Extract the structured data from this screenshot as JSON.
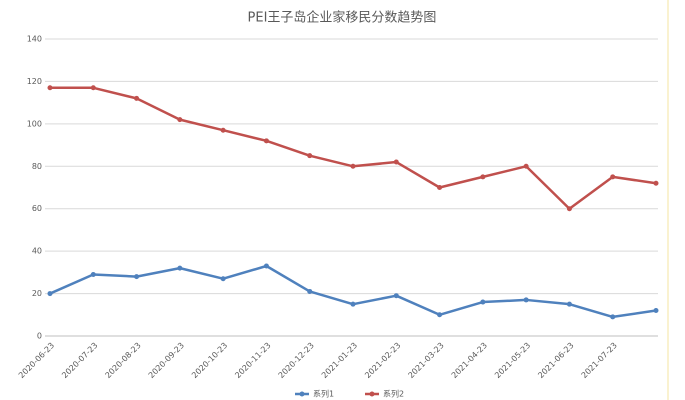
{
  "chart_data": {
    "type": "line",
    "title": "PEI王子岛企业家移民分数趋势图",
    "categories": [
      "2020-06-23",
      "2020-07-23",
      "2020-08-23",
      "2020-09-23",
      "2020-10-23",
      "2020-11-23",
      "2020-12-23",
      "2021-01-23",
      "2021-02-23",
      "2021-03-23",
      "2021-04-23",
      "2021-05-23",
      "2021-06-23",
      "2021-07-23",
      null
    ],
    "series": [
      {
        "name": "系列1",
        "color": "#4f81bd",
        "values": [
          20,
          29,
          28,
          32,
          27,
          33,
          21,
          15,
          19,
          10,
          16,
          17,
          15,
          9,
          12
        ]
      },
      {
        "name": "系列2",
        "color": "#c0504d",
        "values": [
          117,
          117,
          112,
          102,
          97,
          92,
          85,
          80,
          82,
          70,
          75,
          80,
          60,
          75,
          72
        ]
      }
    ],
    "ylim": [
      0,
      140
    ],
    "yticks": [
      0,
      20,
      40,
      60,
      80,
      100,
      120,
      140
    ],
    "grid": true,
    "legend": "bottom"
  }
}
